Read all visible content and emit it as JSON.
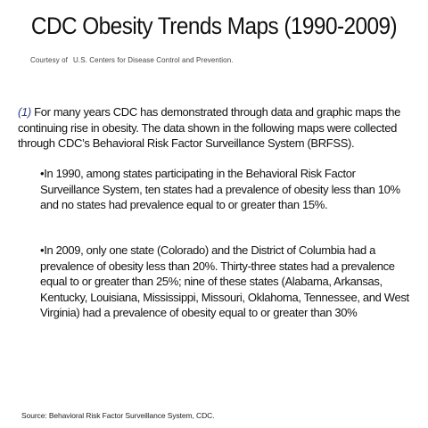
{
  "slide": {
    "title": "CDC Obesity Trends Maps (1990-2009)",
    "courtesy_prefix": "Courtesy of",
    "courtesy_source": "U.S. Centers for Disease Control and  Prevention.",
    "intro_ref": "(1)",
    "intro_text": " For many years CDC has demonstrated through data and graphic maps the continuing rise in obesity. The data shown in the following maps were collected through CDC’s Behavioral Risk Factor Surveillance System (BRFSS).",
    "bullets": [
      "•In 1990, among states participating in the Behavioral Risk Factor Surveillance System, ten states had a prevalence of obesity less than 10% and no states had prevalence equal to or greater than 15%.",
      "•In 2009, only one state (Colorado) and the District of Columbia had a prevalence of obesity less than 20%. Thirty-three states had a prevalence equal to or greater than 25%; nine of these states (Alabama, Arkansas, Kentucky, Louisiana, Mississippi, Missouri, Oklahoma, Tennessee, and West Virginia) had a prevalence of obesity equal to or greater than 30%"
    ],
    "source": "Source: Behavioral Risk Factor Surveillance System, CDC."
  },
  "colors": {
    "reference_marker": "#2a3a8c",
    "text": "#111111",
    "background": "#ffffff"
  }
}
